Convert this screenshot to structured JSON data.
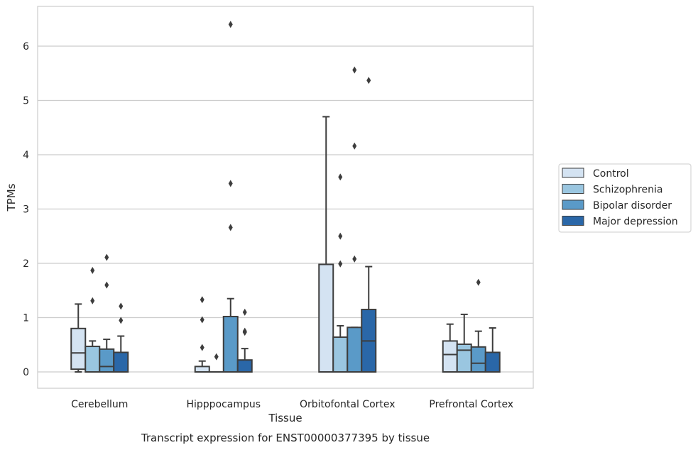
{
  "chart_data": {
    "type": "boxplot",
    "title": "",
    "caption": "Transcript expression for ENST00000377395 by tissue",
    "xlabel": "Tissue",
    "ylabel": "TPMs",
    "ylim": [
      -0.32,
      6.75
    ],
    "yticks": [
      0,
      1,
      2,
      3,
      4,
      5,
      6
    ],
    "grid": true,
    "legend_position": "right",
    "categories": [
      "Cerebellum",
      "Hipppocampus",
      "Orbitofontal Cortex",
      "Prefrontal Cortex"
    ],
    "series": [
      {
        "name": "Control",
        "color": "#d4e3f2",
        "boxes": [
          {
            "whislo": 0.0,
            "q1": 0.05,
            "med": 0.35,
            "q3": 0.8,
            "whishi": 1.25,
            "fliers": []
          },
          {
            "whislo": 0.0,
            "q1": 0.0,
            "med": 0.0,
            "q3": 0.1,
            "whishi": 0.2,
            "fliers": [
              0.45,
              0.96,
              1.33
            ]
          },
          {
            "whislo": 0.0,
            "q1": 0.0,
            "med": 0.0,
            "q3": 1.98,
            "whishi": 4.7,
            "fliers": []
          },
          {
            "whislo": 0.0,
            "q1": 0.0,
            "med": 0.32,
            "q3": 0.57,
            "whishi": 0.88,
            "fliers": []
          }
        ]
      },
      {
        "name": "Schizophrenia",
        "color": "#9ac6e0",
        "boxes": [
          {
            "whislo": 0.0,
            "q1": 0.0,
            "med": 0.0,
            "q3": 0.47,
            "whishi": 0.57,
            "fliers": [
              1.31,
              1.87
            ]
          },
          {
            "whislo": 0.0,
            "q1": 0.0,
            "med": 0.0,
            "q3": 0.0,
            "whishi": 0.0,
            "fliers": [
              0.28
            ]
          },
          {
            "whislo": 0.0,
            "q1": 0.0,
            "med": 0.0,
            "q3": 0.64,
            "whishi": 0.85,
            "fliers": [
              1.99,
              2.5,
              3.59
            ]
          },
          {
            "whislo": 0.0,
            "q1": 0.0,
            "med": 0.4,
            "q3": 0.51,
            "whishi": 1.06,
            "fliers": []
          }
        ]
      },
      {
        "name": "Bipolar disorder",
        "color": "#5a9ac8",
        "boxes": [
          {
            "whislo": 0.0,
            "q1": 0.0,
            "med": 0.1,
            "q3": 0.42,
            "whishi": 0.6,
            "fliers": [
              1.6,
              2.11
            ]
          },
          {
            "whislo": 0.0,
            "q1": 0.0,
            "med": 0.0,
            "q3": 1.02,
            "whishi": 1.35,
            "fliers": [
              2.66,
              3.47,
              6.4
            ]
          },
          {
            "whislo": 0.0,
            "q1": 0.0,
            "med": 0.0,
            "q3": 0.82,
            "whishi": 0.82,
            "fliers": [
              2.08,
              4.16,
              5.56
            ]
          },
          {
            "whislo": 0.0,
            "q1": 0.0,
            "med": 0.16,
            "q3": 0.46,
            "whishi": 0.75,
            "fliers": [
              1.65
            ]
          }
        ]
      },
      {
        "name": "Major depression",
        "color": "#2a67a8",
        "boxes": [
          {
            "whislo": 0.0,
            "q1": 0.0,
            "med": 0.0,
            "q3": 0.36,
            "whishi": 0.66,
            "fliers": [
              0.95,
              1.21
            ]
          },
          {
            "whislo": 0.0,
            "q1": 0.0,
            "med": 0.0,
            "q3": 0.22,
            "whishi": 0.43,
            "fliers": [
              0.73,
              0.75,
              1.1
            ]
          },
          {
            "whislo": 0.0,
            "q1": 0.0,
            "med": 0.57,
            "q3": 1.15,
            "whishi": 1.94,
            "fliers": [
              5.37
            ]
          },
          {
            "whislo": 0.0,
            "q1": 0.0,
            "med": 0.0,
            "q3": 0.36,
            "whishi": 0.81,
            "fliers": []
          }
        ]
      }
    ]
  }
}
